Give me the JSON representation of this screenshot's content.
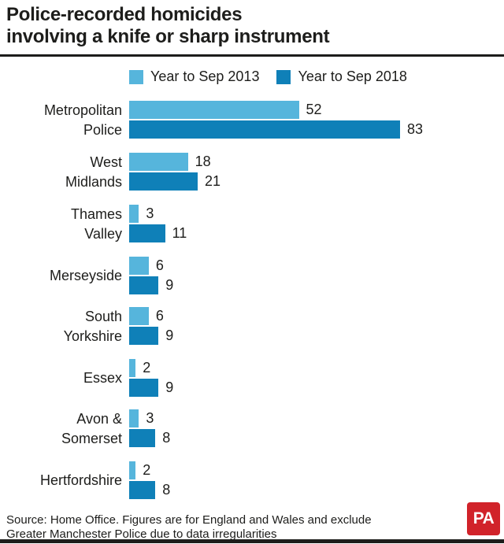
{
  "title": {
    "line1": "Police-recorded homicides",
    "line2": "involving a knife or sharp instrument"
  },
  "legend": {
    "items": [
      {
        "label": "Year to Sep 2013",
        "color": "#56b5dc"
      },
      {
        "label": "Year to Sep 2018",
        "color": "#0f80b8"
      }
    ]
  },
  "chart_data": {
    "type": "bar",
    "orientation": "horizontal",
    "title": "Police-recorded homicides involving a knife or sharp instrument",
    "categories": [
      "Metropolitan Police",
      "West Midlands",
      "Thames Valley",
      "Merseyside",
      "South Yorkshire",
      "Essex",
      "Avon & Somerset",
      "Hertfordshire"
    ],
    "category_lines": [
      [
        "Metropolitan",
        "Police"
      ],
      [
        "West",
        "Midlands"
      ],
      [
        "Thames",
        "Valley"
      ],
      [
        "Merseyside"
      ],
      [
        "South",
        "Yorkshire"
      ],
      [
        "Essex"
      ],
      [
        "Avon &",
        "Somerset"
      ],
      [
        "Hertfordshire"
      ]
    ],
    "series": [
      {
        "name": "Year to Sep 2013",
        "color": "#56b5dc",
        "values": [
          52,
          18,
          3,
          6,
          6,
          2,
          3,
          2
        ]
      },
      {
        "name": "Year to Sep 2018",
        "color": "#0f80b8",
        "values": [
          83,
          21,
          11,
          9,
          9,
          9,
          8,
          8
        ]
      }
    ],
    "value_labels": true,
    "xlim": [
      0,
      83
    ],
    "legend_position": "top",
    "grid": false
  },
  "footer": {
    "source_line1": "Source: Home Office. Figures are for England and Wales and exclude",
    "source_line2": "Greater Manchester Police due to data irregularities",
    "logo_text": "PA",
    "logo_color": "#d1232a"
  },
  "colors": {
    "series_2013": "#56b5dc",
    "series_2018": "#0f80b8",
    "text": "#1d1d1b",
    "rule": "#1d1d1b",
    "background": "#ffffff"
  }
}
